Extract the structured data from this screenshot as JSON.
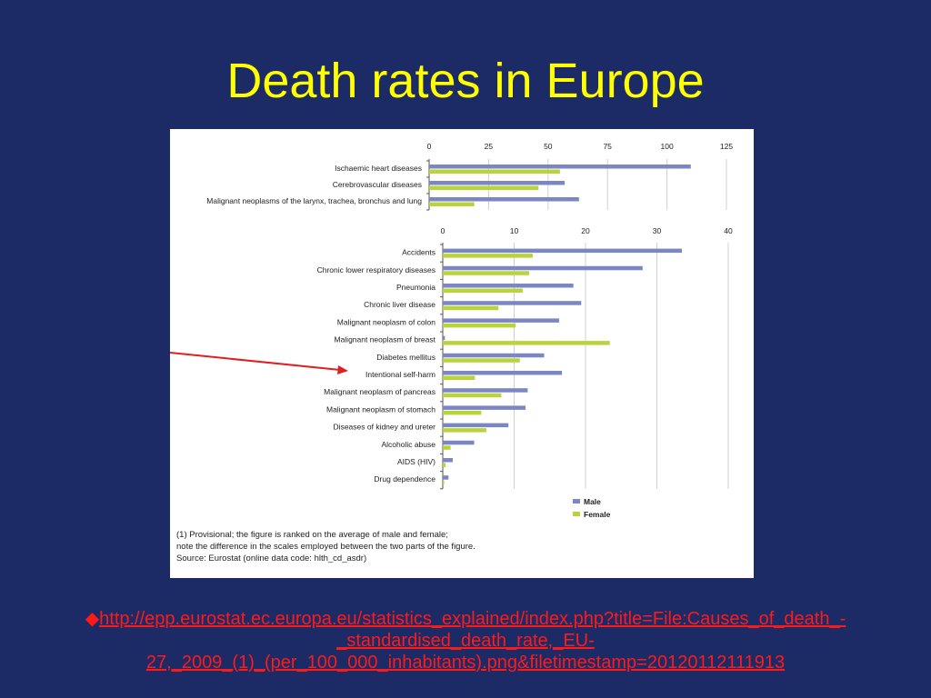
{
  "slide": {
    "title": "Death rates in Europe",
    "bullet": "◆",
    "url": "http://epp.eurostat.ec.europa.eu/statistics_explained/index.php?title=File:Causes_of_death_-_standardised_death_rate,_EU-27,_2009_(1)_(per_100_000_inhabitants).png&filetimestamp=20120112111913"
  },
  "colors": {
    "male": "#7b86c4",
    "female": "#b9d33b",
    "title": "#ffff00",
    "link": "#ff1a1a",
    "background": "#1c2a66",
    "arrow": "#e02020"
  },
  "notes": [
    "(1) Provisional; the figure is ranked on the average of male and female;",
    "note the difference in the scales employed between the two parts of the figure.",
    "Source: Eurostat (online data code: hlth_cd_asdr)"
  ],
  "chart_data": [
    {
      "type": "bar",
      "orientation": "horizontal",
      "categories": [
        "Ischaemic heart diseases",
        "Cerebrovascular diseases",
        "Malignant neoplasms of the larynx, trachea, bronchus and lung"
      ],
      "series": [
        {
          "name": "Male",
          "values": [
            110,
            57,
            63
          ]
        },
        {
          "name": "Female",
          "values": [
            55,
            46,
            19
          ]
        }
      ],
      "xticks": [
        "0",
        "25",
        "50",
        "75",
        "100",
        "125"
      ],
      "xlim": [
        0,
        125
      ],
      "grid": true
    },
    {
      "type": "bar",
      "orientation": "horizontal",
      "categories": [
        "Accidents",
        "Chronic lower respiratory diseases",
        "Pneumonia",
        "Chronic liver disease",
        "Malignant neoplasm of colon",
        "Malignant neoplasm of breast",
        "Diabetes mellitus",
        "Intentional self-harm",
        "Malignant neoplasm of pancreas",
        "Malignant neoplasm of stomach",
        "Diseases of kidney and ureter",
        "Alcoholic abuse",
        "AIDS (HIV)",
        "Drug dependence"
      ],
      "series": [
        {
          "name": "Male",
          "values": [
            33.5,
            28,
            18.3,
            19.4,
            16.3,
            0.3,
            14.2,
            16.7,
            11.9,
            11.6,
            9.2,
            4.4,
            1.4,
            0.8
          ]
        },
        {
          "name": "Female",
          "values": [
            12.6,
            12.1,
            11.2,
            7.8,
            10.2,
            23.4,
            10.8,
            4.5,
            8.2,
            5.4,
            6.1,
            1.1,
            0.4,
            0.2
          ]
        }
      ],
      "xticks": [
        "0",
        "10",
        "20",
        "30",
        "40"
      ],
      "xlim": [
        0,
        40
      ],
      "grid": true,
      "legend": "bottom-right"
    }
  ]
}
